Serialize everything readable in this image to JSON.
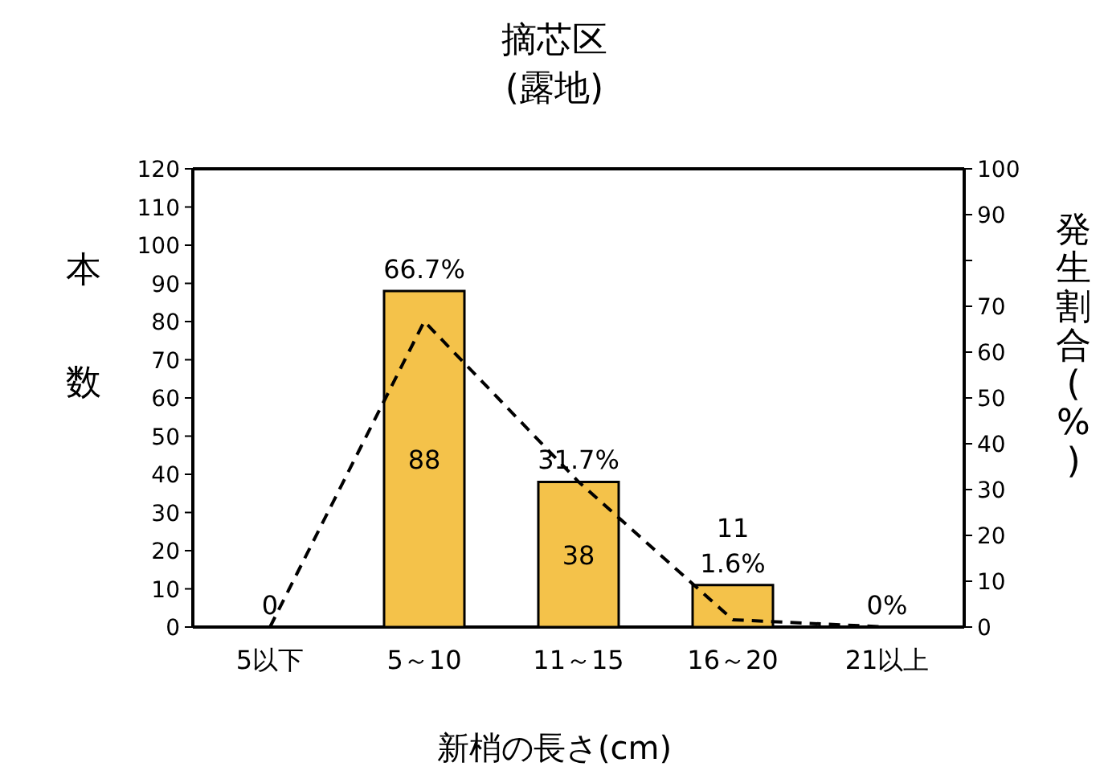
{
  "chart_data": {
    "type": "bar",
    "title": "摘芯区",
    "subtitle": "(露地)",
    "xlabel": "新梢の長さ(cm)",
    "ylabel": "本数",
    "y2label": "発生割合(%)",
    "categories": [
      "5以下",
      "5～10",
      "11～15",
      "16～20",
      "21以上"
    ],
    "series": [
      {
        "color": "#f4c24a",
        "values": [
          0,
          88,
          38,
          11,
          0
        ],
        "value_labels": [
          "0",
          "88",
          "38",
          "11",
          null
        ]
      },
      {
        "type": "line",
        "axis": "y2",
        "color": "#000000",
        "line_style": "dashed",
        "values": [
          0,
          66.7,
          31.7,
          1.6,
          0
        ],
        "value_labels": [
          null,
          "66.7%",
          "31.7%",
          "1.6%",
          "0%"
        ]
      }
    ],
    "ylim": [
      0,
      120
    ],
    "yticks": [
      0,
      10,
      20,
      30,
      40,
      50,
      60,
      70,
      80,
      90,
      100,
      110,
      120
    ],
    "y2lim": [
      0,
      100
    ],
    "y2ticks": [
      0,
      10,
      20,
      30,
      40,
      50,
      60,
      70,
      {
        "value": 80,
        "label": null
      },
      90,
      100
    ]
  }
}
